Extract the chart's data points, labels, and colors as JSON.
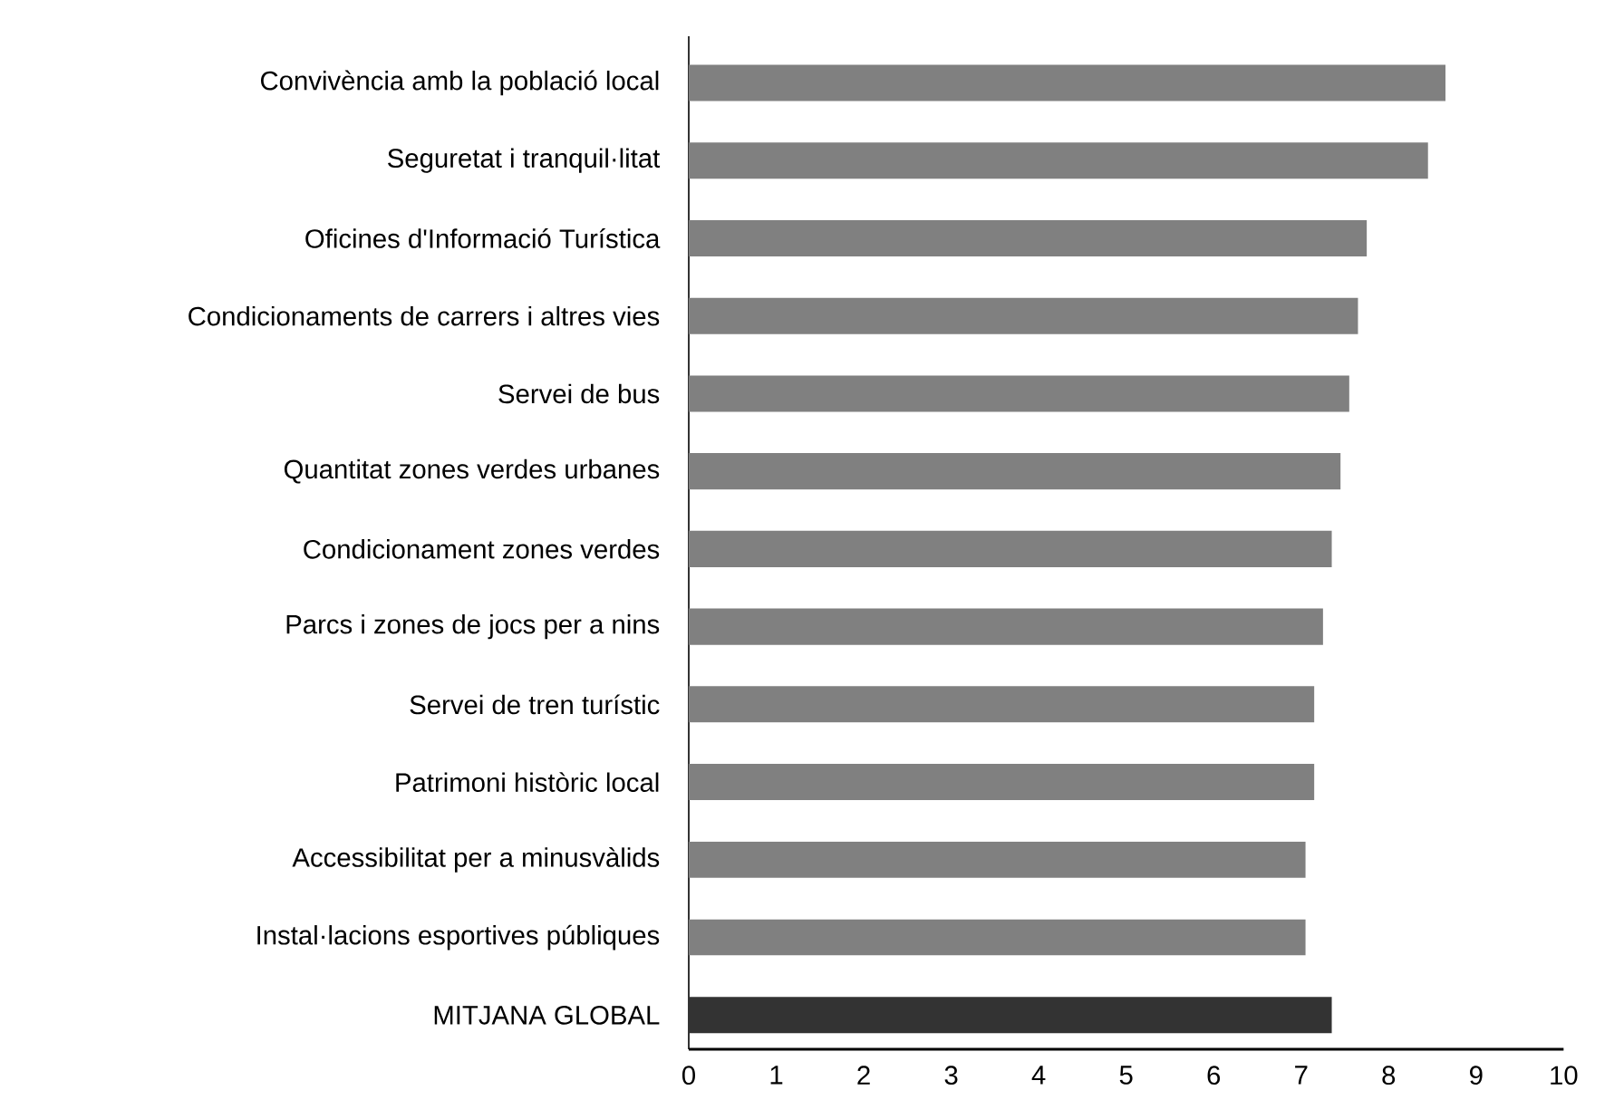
{
  "chart_data": {
    "type": "bar",
    "orientation": "horizontal",
    "categories": [
      "Convivència amb la població local",
      "Seguretat i tranquil·litat",
      "Oficines d'Informació Turística",
      "Condicionaments de carrers i altres vies",
      "Servei de bus",
      "Quantitat zones verdes urbanes",
      "Condicionament zones verdes",
      "Parcs i zones de jocs per a nins",
      "Servei de tren turístic",
      "Patrimoni històric local",
      "Accessibilitat per a minusvàlids",
      "Instal·lacions esportives públiques",
      "MITJANA GLOBAL"
    ],
    "values": [
      8.65,
      8.45,
      7.75,
      7.65,
      7.55,
      7.45,
      7.35,
      7.25,
      7.15,
      7.15,
      7.05,
      7.05,
      7.35
    ],
    "colors": [
      "#808080",
      "#808080",
      "#808080",
      "#808080",
      "#808080",
      "#808080",
      "#808080",
      "#808080",
      "#808080",
      "#808080",
      "#808080",
      "#808080",
      "#333333"
    ],
    "xlim": [
      0,
      10
    ],
    "xticks": [
      0,
      1,
      2,
      3,
      4,
      5,
      6,
      7,
      8,
      9,
      10
    ]
  }
}
